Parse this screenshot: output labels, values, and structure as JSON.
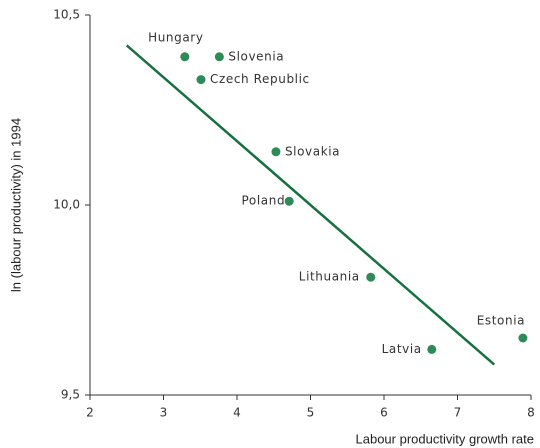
{
  "chart_data": {
    "type": "scatter",
    "x_label": "Labour productivity growth rate",
    "y_label": "ln (labour productivity) in 1994",
    "labels": [
      "Hungary",
      "Slovenia",
      "Czech Republic",
      "Slovakia",
      "Poland",
      "Lithuania",
      "Latvia",
      "Estonia"
    ],
    "x": [
      3.29,
      3.76,
      3.51,
      4.53,
      4.71,
      5.82,
      6.65,
      7.89
    ],
    "y": [
      10.39,
      10.39,
      10.33,
      10.14,
      10.01,
      9.81,
      9.62,
      9.65
    ],
    "color": "#2e8b57",
    "trend_line": {
      "x": [
        2.5,
        7.5
      ],
      "y": [
        10.42,
        9.58
      ],
      "color": "#16703f"
    },
    "xlim": [
      2,
      8
    ],
    "ylim": [
      9.5,
      10.5
    ],
    "xticks": [
      2,
      3,
      4,
      5,
      6,
      7,
      8
    ],
    "yticks": [
      {
        "value": 9.5,
        "label": "9,5"
      },
      {
        "value": 10.0,
        "label": "10,0"
      },
      {
        "value": 10.5,
        "label": "10,5"
      }
    ],
    "grid": false
  }
}
